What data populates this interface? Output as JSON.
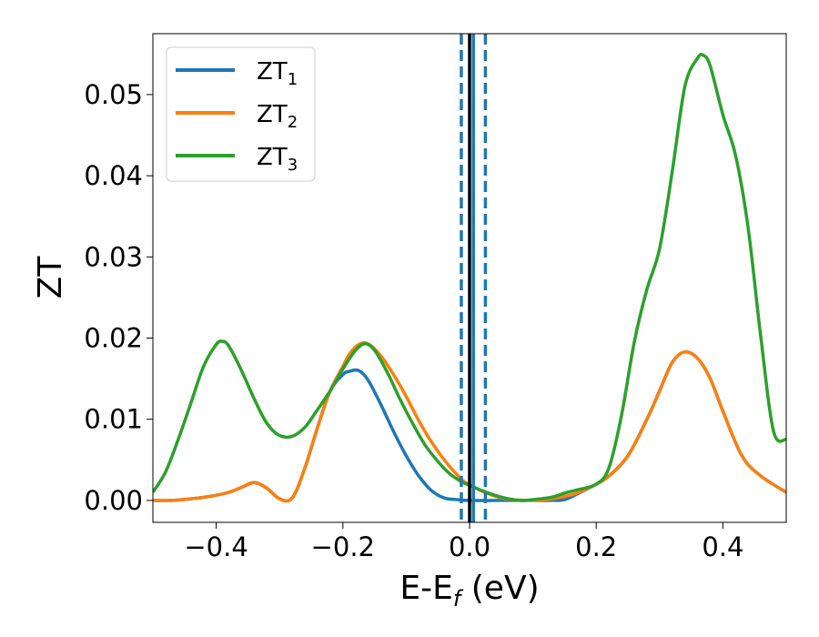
{
  "chart_data": {
    "type": "line",
    "xlabel": "E-E",
    "xlabel_sub": "f",
    "xlabel_unit": " (eV)",
    "ylabel": "ZT",
    "xlim": [
      -0.5,
      0.5
    ],
    "ylim": [
      -0.0027,
      0.0575
    ],
    "grid": false,
    "legend_position": "top-left",
    "x_ticks": [
      -0.4,
      -0.2,
      0.0,
      0.2,
      0.4
    ],
    "x_tick_labels": [
      "−0.4",
      "−0.2",
      "0.0",
      "0.2",
      "0.4"
    ],
    "y_ticks": [
      0.0,
      0.01,
      0.02,
      0.03,
      0.04,
      0.05
    ],
    "y_tick_labels": [
      "0.00",
      "0.01",
      "0.02",
      "0.03",
      "0.04",
      "0.05"
    ],
    "vertical_lines": [
      {
        "x": -0.013,
        "style": "dashed",
        "color": "#1f77b4"
      },
      {
        "x": 0.0,
        "style": "solid",
        "color": "#000000"
      },
      {
        "x": 0.006,
        "style": "solid",
        "color": "#1f77b4"
      },
      {
        "x": 0.025,
        "style": "dashed",
        "color": "#1f77b4"
      }
    ],
    "series": [
      {
        "name": "ZT",
        "name_sub": "1",
        "color": "#1f77b4",
        "x": [
          -0.5,
          -0.47,
          -0.44,
          -0.41,
          -0.38,
          -0.36,
          -0.34,
          -0.32,
          -0.3,
          -0.28,
          -0.26,
          -0.24,
          -0.22,
          -0.2,
          -0.19,
          -0.175,
          -0.16,
          -0.14,
          -0.12,
          -0.1,
          -0.08,
          -0.06,
          -0.04,
          -0.02,
          0.0,
          0.05,
          0.1,
          0.13,
          0.15,
          0.17,
          0.2,
          0.22,
          0.25,
          0.28,
          0.3,
          0.32,
          0.34,
          0.36,
          0.38,
          0.4,
          0.43,
          0.46,
          0.5
        ],
        "y": [
          0.0,
          0.0,
          0.0002,
          0.0005,
          0.001,
          0.0016,
          0.0022,
          0.0015,
          0.0002,
          0.0003,
          0.004,
          0.009,
          0.0135,
          0.0155,
          0.0159,
          0.016,
          0.0148,
          0.0118,
          0.0085,
          0.0055,
          0.003,
          0.0012,
          0.0003,
          0.0001,
          0.0,
          0.0,
          0.0,
          0.0,
          0.0001,
          0.0008,
          0.002,
          0.003,
          0.0055,
          0.01,
          0.0135,
          0.017,
          0.0183,
          0.0175,
          0.015,
          0.011,
          0.0055,
          0.003,
          0.001
        ]
      },
      {
        "name": "ZT",
        "name_sub": "2",
        "color": "#ff7f0e",
        "x": [
          -0.5,
          -0.47,
          -0.44,
          -0.41,
          -0.38,
          -0.36,
          -0.34,
          -0.32,
          -0.3,
          -0.28,
          -0.26,
          -0.24,
          -0.22,
          -0.2,
          -0.19,
          -0.175,
          -0.16,
          -0.14,
          -0.12,
          -0.1,
          -0.08,
          -0.06,
          -0.04,
          -0.02,
          0.0,
          0.05,
          0.1,
          0.13,
          0.15,
          0.17,
          0.2,
          0.22,
          0.25,
          0.28,
          0.3,
          0.32,
          0.34,
          0.36,
          0.38,
          0.4,
          0.43,
          0.46,
          0.5
        ],
        "y": [
          0.0,
          0.0,
          0.0002,
          0.0005,
          0.001,
          0.0016,
          0.0022,
          0.0015,
          0.0002,
          0.0003,
          0.004,
          0.009,
          0.0135,
          0.0165,
          0.018,
          0.0192,
          0.0193,
          0.0178,
          0.0155,
          0.0128,
          0.0098,
          0.0072,
          0.005,
          0.0032,
          0.0019,
          0.0003,
          0.0,
          0.0002,
          0.0005,
          0.0009,
          0.002,
          0.003,
          0.0055,
          0.01,
          0.0135,
          0.017,
          0.0183,
          0.0175,
          0.015,
          0.011,
          0.0055,
          0.003,
          0.001
        ]
      },
      {
        "name": "ZT",
        "name_sub": "3",
        "color": "#2ca02c",
        "x": [
          -0.5,
          -0.48,
          -0.46,
          -0.44,
          -0.42,
          -0.4,
          -0.39,
          -0.38,
          -0.36,
          -0.34,
          -0.32,
          -0.3,
          -0.28,
          -0.26,
          -0.24,
          -0.22,
          -0.2,
          -0.18,
          -0.165,
          -0.15,
          -0.13,
          -0.11,
          -0.09,
          -0.07,
          -0.05,
          -0.03,
          -0.01,
          0.0,
          0.02,
          0.05,
          0.08,
          0.1,
          0.13,
          0.15,
          0.17,
          0.2,
          0.22,
          0.24,
          0.26,
          0.28,
          0.3,
          0.32,
          0.34,
          0.36,
          0.37,
          0.38,
          0.4,
          0.42,
          0.44,
          0.46,
          0.48,
          0.5
        ],
        "y": [
          0.001,
          0.0035,
          0.0075,
          0.012,
          0.0165,
          0.0192,
          0.0196,
          0.019,
          0.016,
          0.0125,
          0.0095,
          0.008,
          0.0079,
          0.009,
          0.0112,
          0.0135,
          0.0162,
          0.0185,
          0.0193,
          0.0185,
          0.0158,
          0.0125,
          0.0095,
          0.0068,
          0.0048,
          0.0032,
          0.0022,
          0.0019,
          0.0012,
          0.0004,
          0.0,
          0.0001,
          0.0004,
          0.0009,
          0.0013,
          0.002,
          0.004,
          0.0105,
          0.0195,
          0.026,
          0.031,
          0.0405,
          0.051,
          0.0545,
          0.0548,
          0.0535,
          0.0475,
          0.0425,
          0.0335,
          0.02,
          0.0085,
          0.0075
        ]
      }
    ]
  }
}
